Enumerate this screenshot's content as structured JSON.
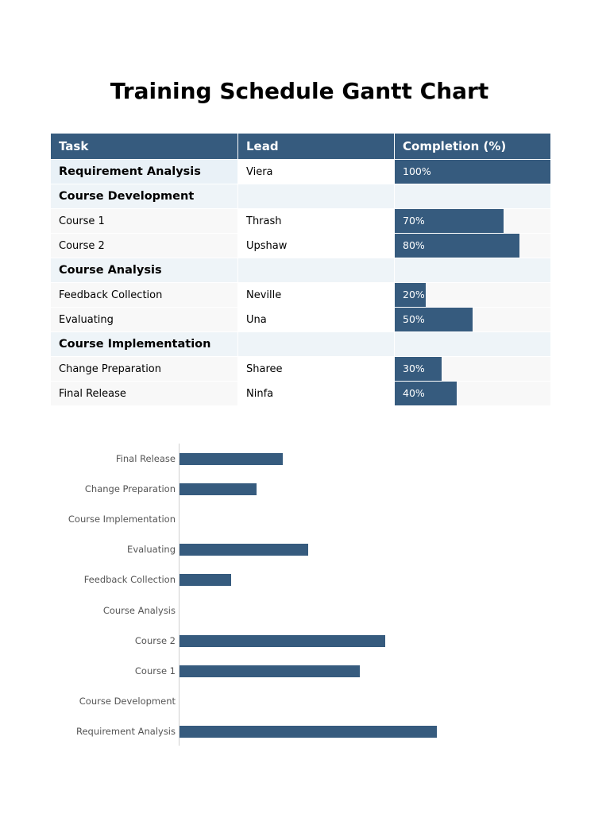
{
  "title": "Training Schedule Gantt Chart",
  "table": {
    "headers": [
      "Task",
      "Lead",
      "Completion (%)"
    ],
    "rows": [
      {
        "task": "Requirement Analysis",
        "lead": "Viera",
        "completion": "100%",
        "pct": 100,
        "type": "first"
      },
      {
        "task": "Course Development",
        "lead": "",
        "completion": "",
        "pct": 0,
        "type": "group"
      },
      {
        "task": "Course 1",
        "lead": "Thrash",
        "completion": "70%",
        "pct": 70,
        "type": "item"
      },
      {
        "task": "Course 2",
        "lead": "Upshaw",
        "completion": "80%",
        "pct": 80,
        "type": "item"
      },
      {
        "task": "Course Analysis",
        "lead": "",
        "completion": "",
        "pct": 0,
        "type": "group"
      },
      {
        "task": "Feedback Collection",
        "lead": "Neville",
        "completion": "20%",
        "pct": 20,
        "type": "item"
      },
      {
        "task": "Evaluating",
        "lead": "Una",
        "completion": "50%",
        "pct": 50,
        "type": "item"
      },
      {
        "task": "Course Implementation",
        "lead": "",
        "completion": "",
        "pct": 0,
        "type": "group"
      },
      {
        "task": "Change Preparation",
        "lead": "Sharee",
        "completion": "30%",
        "pct": 30,
        "type": "item"
      },
      {
        "task": "Final Release",
        "lead": "Ninfa",
        "completion": "40%",
        "pct": 40,
        "type": "item"
      }
    ]
  },
  "colors": {
    "accent": "#365b7e",
    "group_bg": "#eef4f8",
    "row_bg": "#f8f8f8"
  },
  "chart_data": {
    "type": "bar",
    "orientation": "horizontal",
    "title": "",
    "categories": [
      "Final Release",
      "Change Preparation",
      "Course Implementation",
      "Evaluating",
      "Feedback Collection",
      "Course Analysis",
      "Course 2",
      "Course 1",
      "Course Development",
      "Requirement Analysis"
    ],
    "values": [
      40,
      30,
      0,
      50,
      20,
      0,
      80,
      70,
      0,
      100
    ],
    "xlabel": "",
    "ylabel": "",
    "xlim": [
      0,
      100
    ],
    "grid": false,
    "color": "#365b7e"
  }
}
